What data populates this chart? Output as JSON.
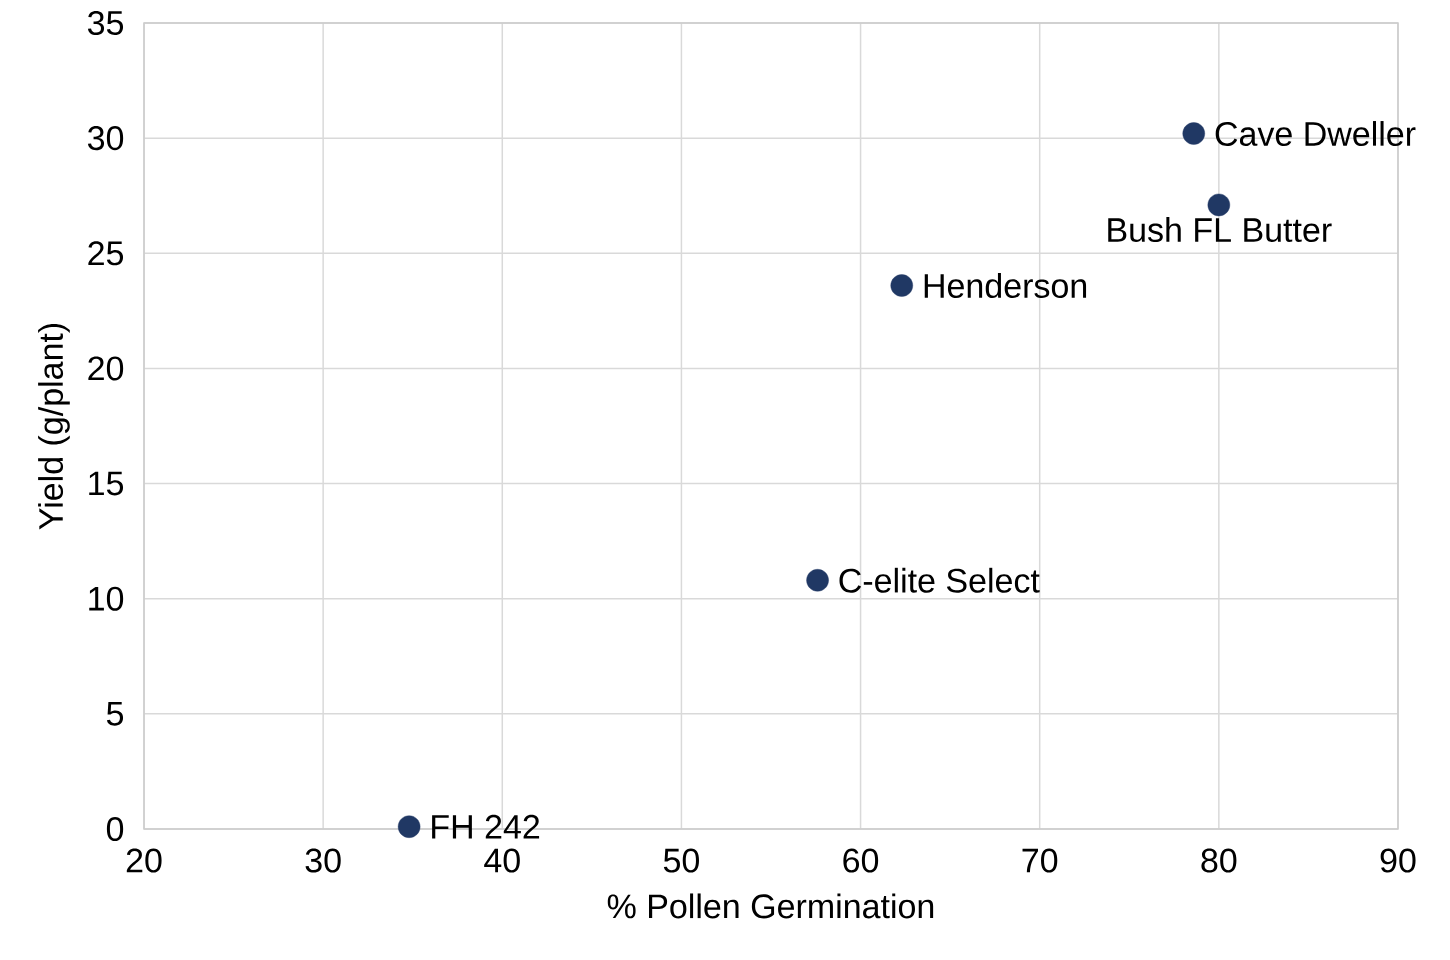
{
  "chart_data": {
    "type": "scatter",
    "xlabel": "% Pollen Germination",
    "ylabel": "Yield (g/plant)",
    "x": [
      34.8,
      57.6,
      62.3,
      78.6,
      80.0
    ],
    "values": [
      0.1,
      10.8,
      23.6,
      30.2,
      27.1
    ],
    "color": "#203864",
    "marker": "circle",
    "grid": true,
    "xlim": [
      20,
      90
    ],
    "ylim": [
      0,
      35
    ],
    "xticks": [
      20,
      30,
      40,
      50,
      60,
      70,
      80,
      90
    ],
    "yticks": [
      0,
      5,
      10,
      15,
      20,
      25,
      30,
      35
    ],
    "annotations": [
      {
        "text": "FH 242",
        "x": 34.8,
        "y": 0.1
      },
      {
        "text": "C-elite Select",
        "x": 57.6,
        "y": 10.8
      },
      {
        "text": "Henderson",
        "x": 62.3,
        "y": 23.6
      },
      {
        "text": "Cave Dweller",
        "x": 78.6,
        "y": 30.2
      },
      {
        "text": "Bush FL Butter",
        "x": 80.0,
        "y": 27.1
      }
    ]
  }
}
